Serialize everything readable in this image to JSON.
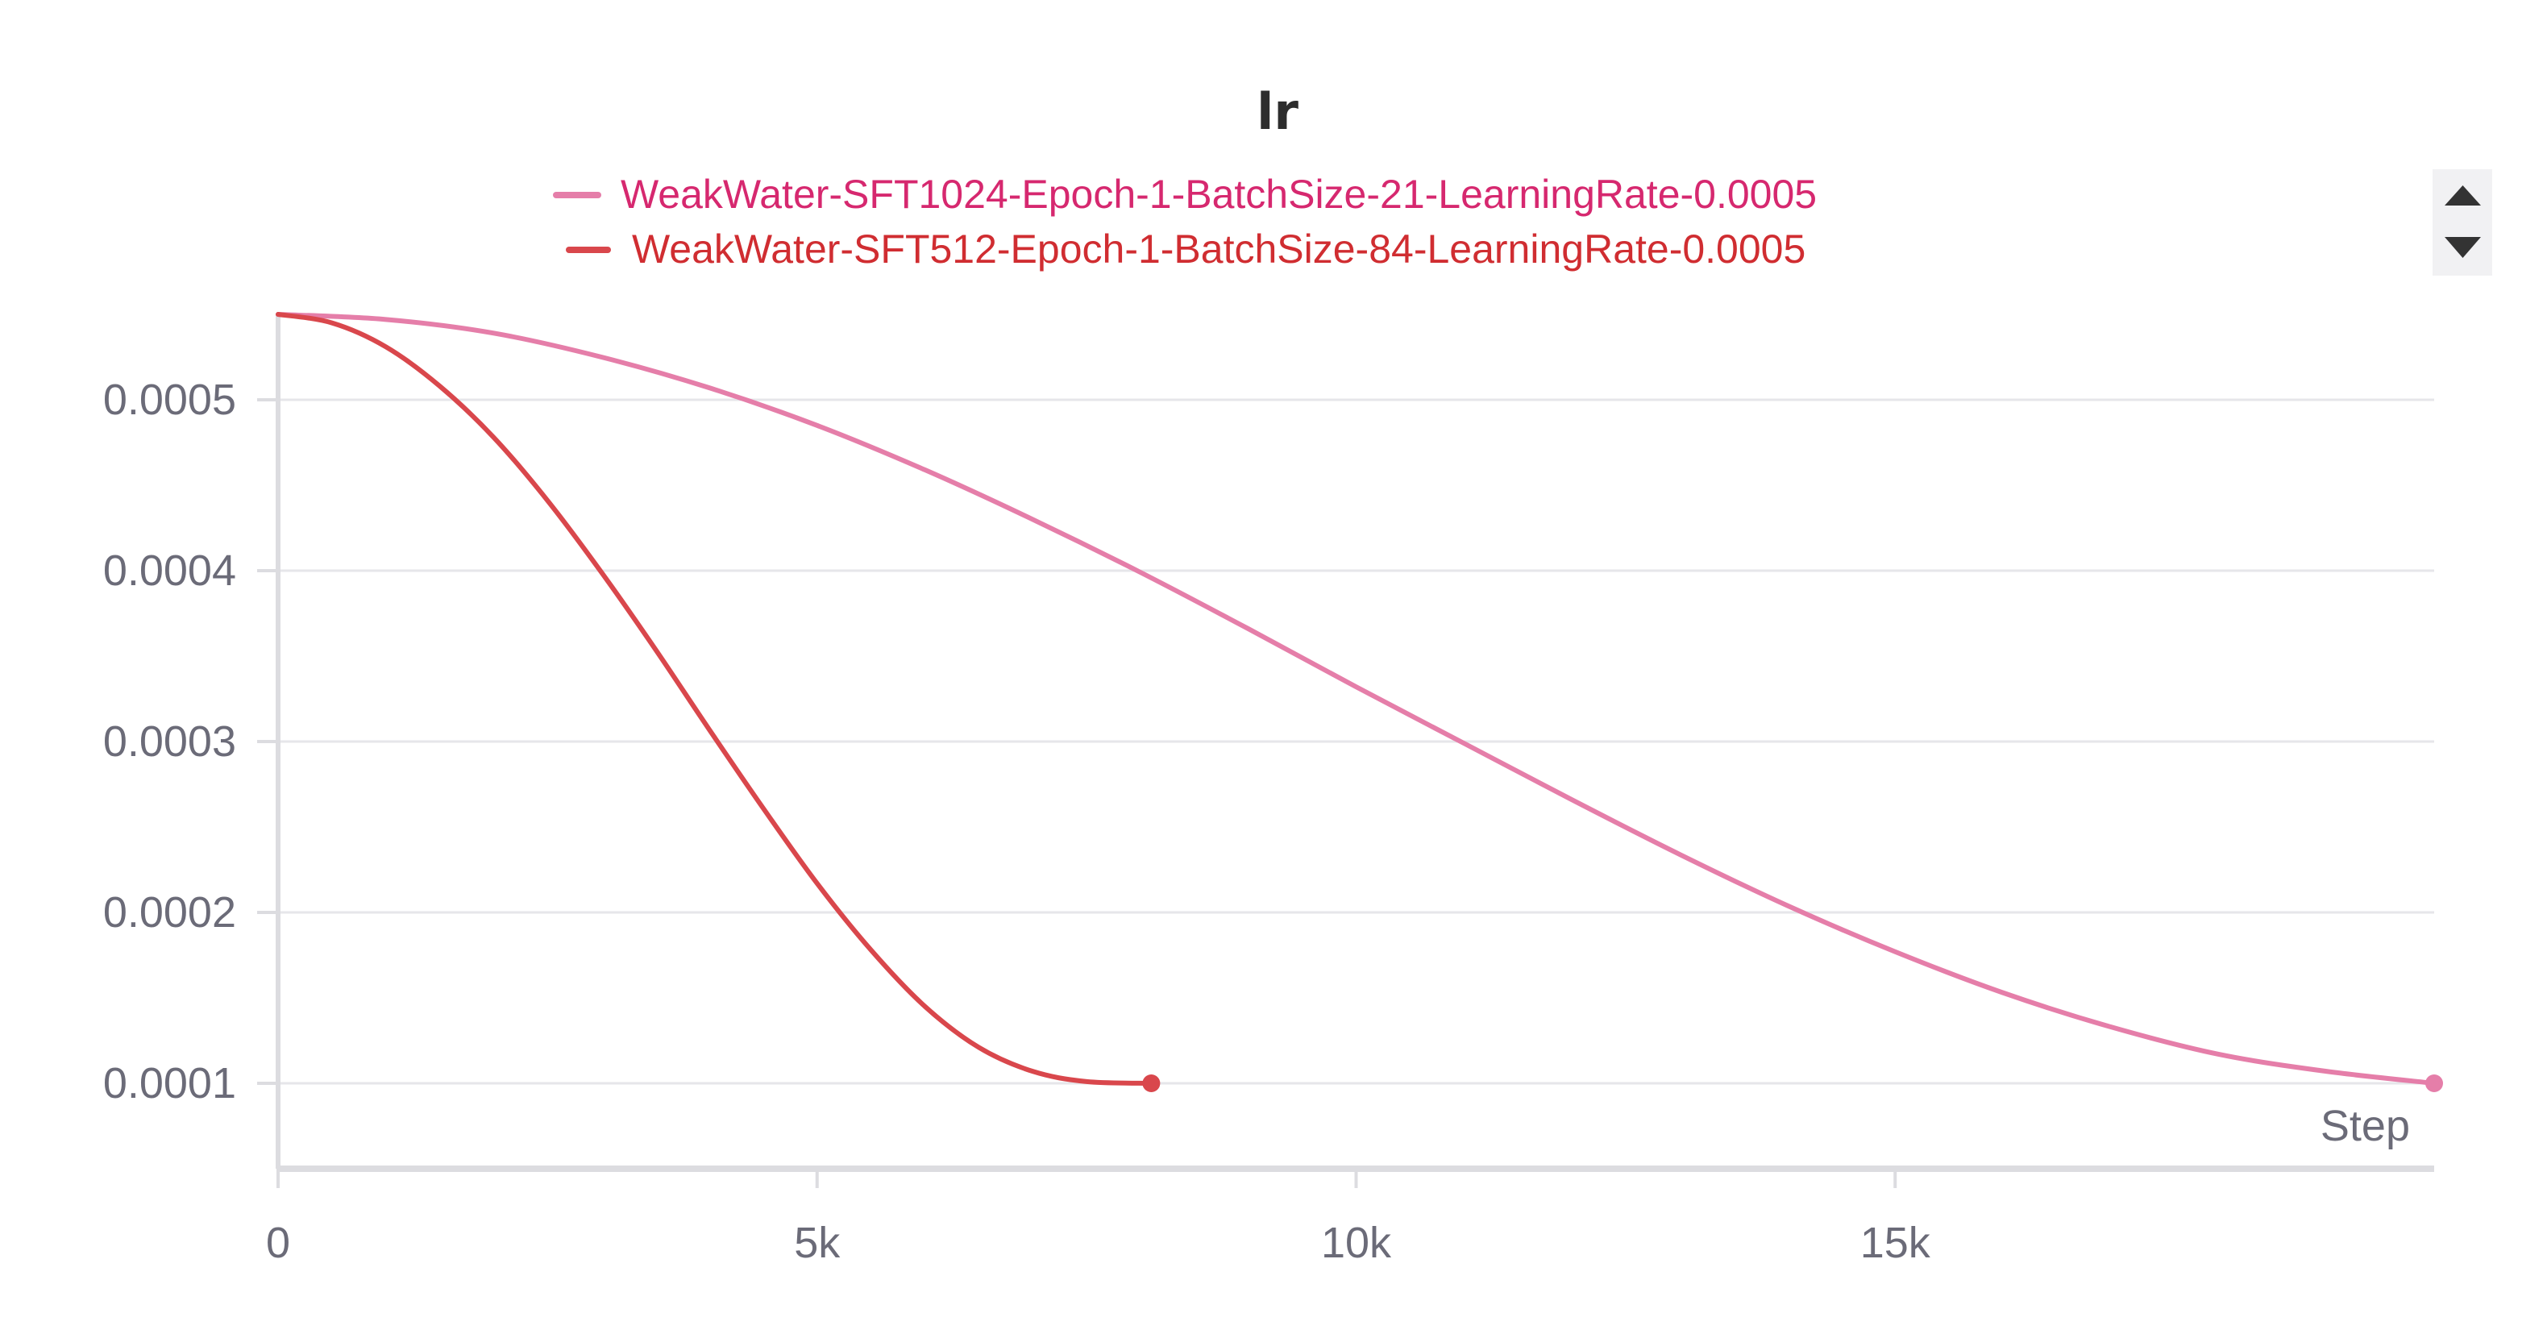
{
  "chart_data": {
    "type": "line",
    "title": "lr",
    "xlabel": "Step",
    "ylabel": "",
    "xlim": [
      0,
      20000
    ],
    "ylim": [
      5e-05,
      0.00055
    ],
    "x_ticks": [
      0,
      5000,
      10000,
      15000
    ],
    "x_tick_labels": [
      "0",
      "5k",
      "10k",
      "15k"
    ],
    "y_ticks": [
      0.0001,
      0.0002,
      0.0003,
      0.0004,
      0.0005
    ],
    "y_tick_labels": [
      "0.0001",
      "0.0002",
      "0.0003",
      "0.0004",
      "0.0005"
    ],
    "grid": true,
    "legend_position": "top-center",
    "series": [
      {
        "name": "WeakWater-SFT1024-Epoch-1-BatchSize-21-LearningRate-0.0005",
        "color": "#e57ea9",
        "x": [
          0,
          1000,
          2000,
          3000,
          4000,
          5000,
          6000,
          7000,
          8000,
          9000,
          10000,
          11000,
          12000,
          13000,
          14000,
          15000,
          16000,
          17000,
          18000,
          19000,
          20000
        ],
        "y": [
          0.00055,
          0.000547,
          0.000539,
          0.000525,
          0.000507,
          0.000485,
          0.000459,
          0.00043,
          0.000399,
          0.000366,
          0.000332,
          0.000299,
          0.000266,
          0.000234,
          0.000204,
          0.000177,
          0.000153,
          0.000133,
          0.000117,
          0.000107,
          0.0001
        ]
      },
      {
        "name": "WeakWater-SFT512-Epoch-1-BatchSize-84-LearningRate-0.0005",
        "color": "#d9474c",
        "x": [
          0,
          500,
          1000,
          1500,
          2000,
          2500,
          3000,
          3500,
          4000,
          4500,
          5000,
          5500,
          6000,
          6500,
          7000,
          7500,
          8100
        ],
        "y": [
          0.00055,
          0.000545,
          0.000531,
          0.000508,
          0.000478,
          0.000441,
          0.000399,
          0.000354,
          0.000307,
          0.000261,
          0.000217,
          0.000178,
          0.000145,
          0.000121,
          0.000107,
          0.000101,
          0.0001
        ]
      }
    ]
  },
  "legend_scroll": {
    "up_icon": "triangle-up-icon",
    "down_icon": "triangle-down-icon"
  }
}
